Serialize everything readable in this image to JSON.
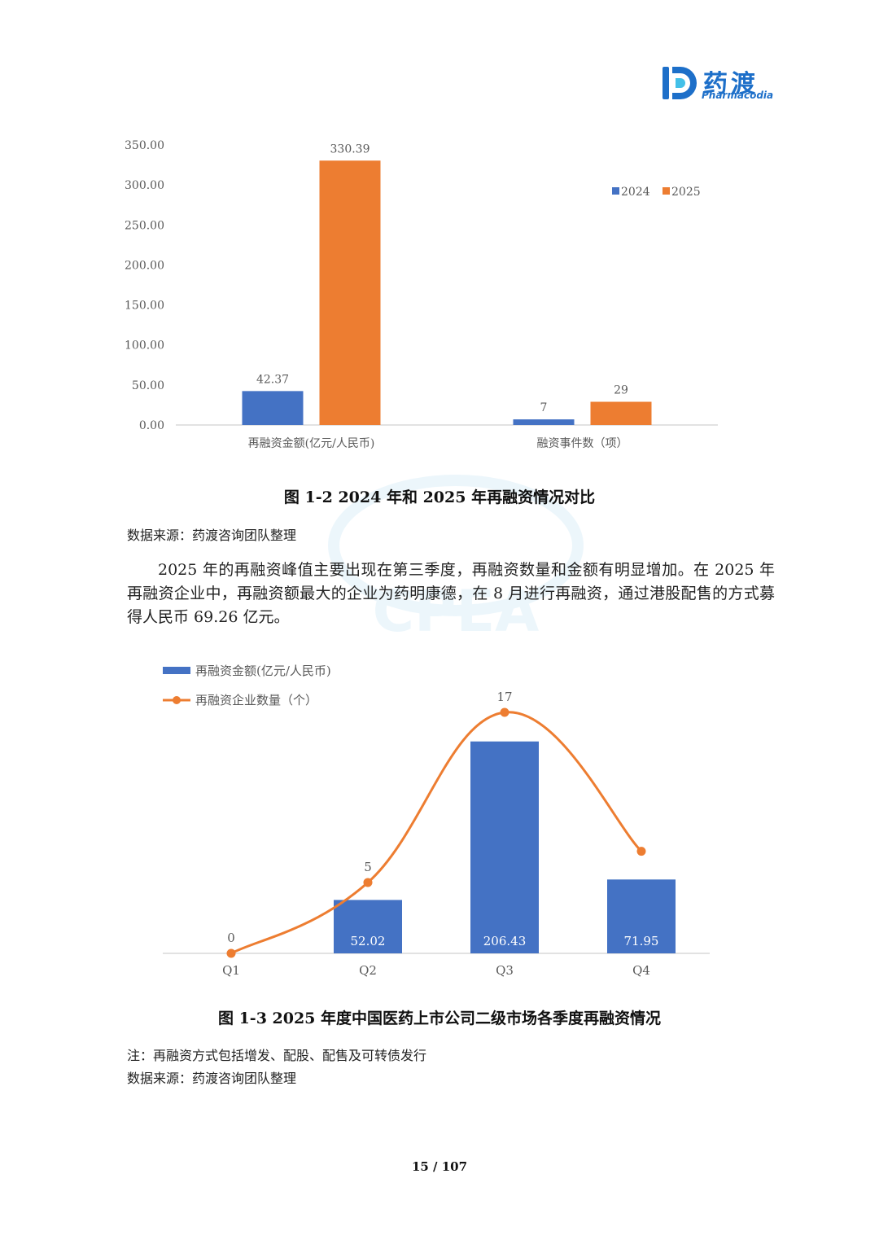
{
  "logo": {
    "cn": "药渡",
    "en": "Pharmacodia"
  },
  "watermark": "CPEA",
  "chart_data": [
    {
      "type": "bar",
      "categories": [
        "再融资金额(亿元/人民币)",
        "融资事件数（项）"
      ],
      "series": [
        {
          "name": "2024",
          "values": [
            42.37,
            7
          ],
          "labels": [
            "42.37",
            "7"
          ],
          "color": "#4472c4"
        },
        {
          "name": "2025",
          "values": [
            330.39,
            29
          ],
          "labels": [
            "330.39",
            "29"
          ],
          "color": "#ed7d31"
        }
      ],
      "ylim": [
        0,
        350
      ],
      "yticks": [
        "0.00",
        "50.00",
        "100.00",
        "150.00",
        "200.00",
        "250.00",
        "300.00",
        "350.00"
      ],
      "legend": "top-right",
      "grid": false
    },
    {
      "type": "bar+line",
      "categories": [
        "Q1",
        "Q2",
        "Q3",
        "Q4"
      ],
      "series": [
        {
          "name": "再融资金额(亿元/人民币)",
          "type": "bar",
          "values": [
            0,
            52.02,
            206.43,
            71.95
          ],
          "labels": [
            "",
            "52.02",
            "206.43",
            "71.95"
          ],
          "color": "#4472c4"
        },
        {
          "name": "再融资企业数量（个）",
          "type": "line",
          "values": [
            0,
            5,
            17,
            null
          ],
          "labels": [
            "0",
            "5",
            "17",
            ""
          ],
          "color": "#ed7d31"
        }
      ],
      "legend": "top-left",
      "grid": false
    }
  ],
  "captions": {
    "fig12": "图 1-2 2024 年和 2025 年再融资情况对比",
    "fig13": "图 1-3 2025 年度中国医药上市公司二级市场各季度再融资情况"
  },
  "source1": "数据来源：药渡咨询团队整理",
  "paragraph": "2025 年的再融资峰值主要出现在第三季度，再融资数量和金额有明显增加。在 2025 年再融资企业中，再融资额最大的企业为药明康德，在 8 月进行再融资，通过港股配售的方式募得人民币 69.26 亿元。",
  "note": "注：再融资方式包括增发、配股、配售及可转债发行",
  "source2": "数据来源：药渡咨询团队整理",
  "page_number": "15 / 107"
}
